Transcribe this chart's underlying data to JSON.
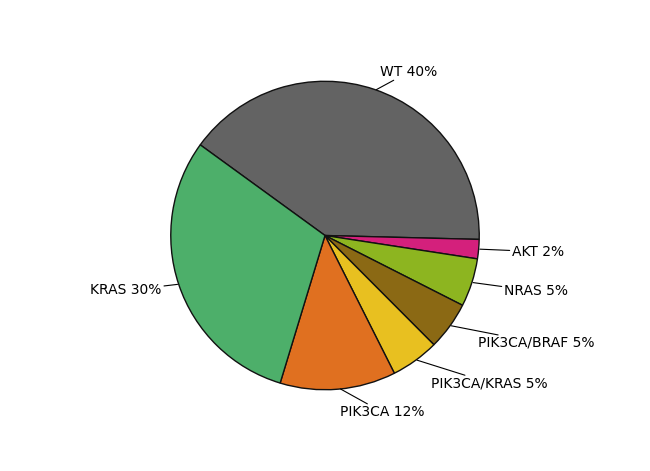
{
  "labels": [
    "WT 40%",
    "AKT 2%",
    "NRAS 5%",
    "PIK3CA/BRAF 5%",
    "PIK3CA/KRAS 5%",
    "PIK3CA 12%",
    "KRAS 30%"
  ],
  "values": [
    40,
    2,
    5,
    5,
    5,
    12,
    30
  ],
  "colors": [
    "#636363",
    "#d4207c",
    "#8db520",
    "#8b6914",
    "#e8c020",
    "#e07020",
    "#4daf6a"
  ],
  "startangle": 144,
  "figsize": [
    6.5,
    4.71
  ],
  "dpi": 100,
  "background_color": "#ffffff",
  "edge_color": "#111111",
  "label_fontsize": 10,
  "label_distance": 1.18
}
